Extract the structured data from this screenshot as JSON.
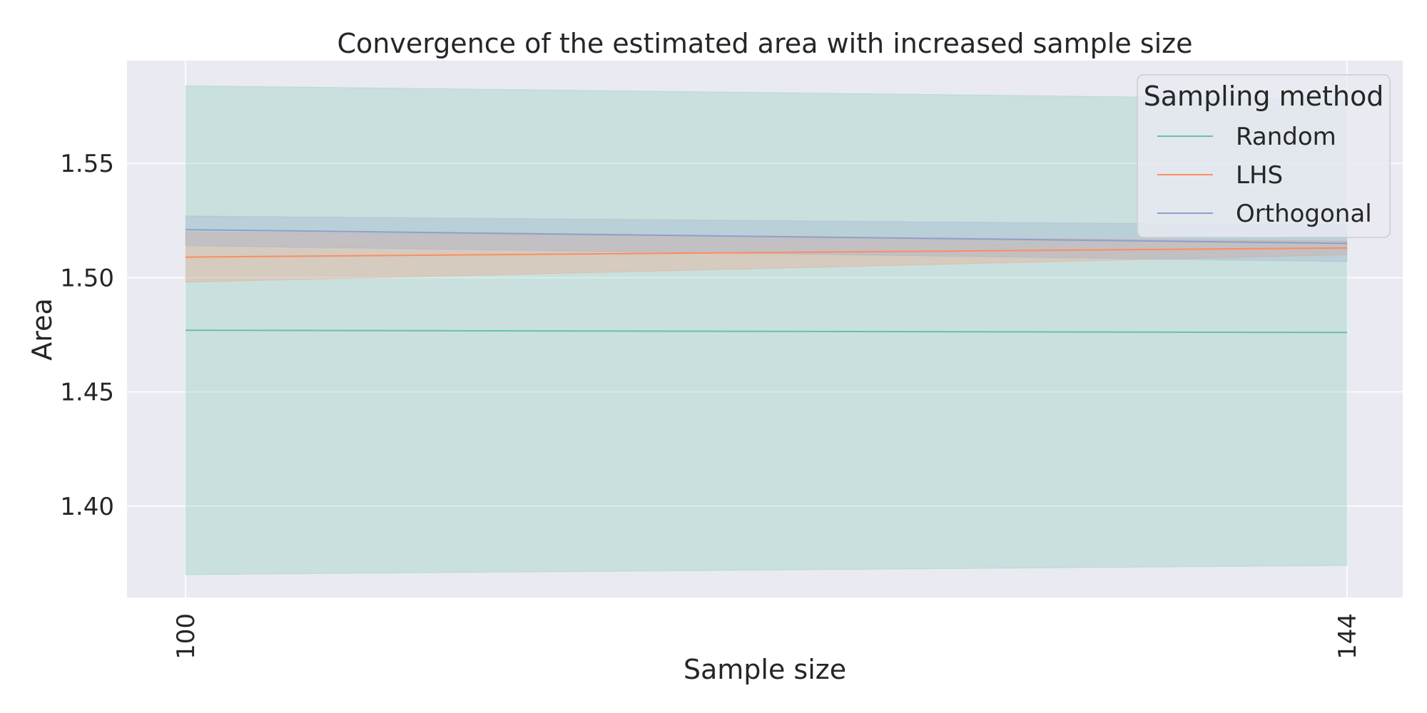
{
  "chart_data": {
    "type": "line",
    "title": "Convergence of the estimated area with increased sample size",
    "xlabel": "Sample size",
    "ylabel": "Area",
    "x": [
      100,
      144
    ],
    "x_tick_labels": [
      "100",
      "144"
    ],
    "ylim": [
      1.36,
      1.595
    ],
    "y_ticks": [
      1.4,
      1.45,
      1.5,
      1.55
    ],
    "y_tick_labels": [
      "1.40",
      "1.45",
      "1.50",
      "1.55"
    ],
    "grid": true,
    "legend": {
      "title": "Sampling method",
      "placement": "top-right"
    },
    "series": [
      {
        "name": "Random",
        "color": "#66c2a5",
        "values": [
          1.477,
          1.476
        ],
        "lower": [
          1.37,
          1.374
        ],
        "upper": [
          1.584,
          1.578
        ]
      },
      {
        "name": "LHS",
        "color": "#fc8d62",
        "values": [
          1.509,
          1.513
        ],
        "lower": [
          1.498,
          1.51
        ],
        "upper": [
          1.52,
          1.516
        ]
      },
      {
        "name": "Orthogonal",
        "color": "#8da0cb",
        "values": [
          1.521,
          1.515
        ],
        "lower": [
          1.514,
          1.507
        ],
        "upper": [
          1.527,
          1.523
        ]
      }
    ]
  }
}
